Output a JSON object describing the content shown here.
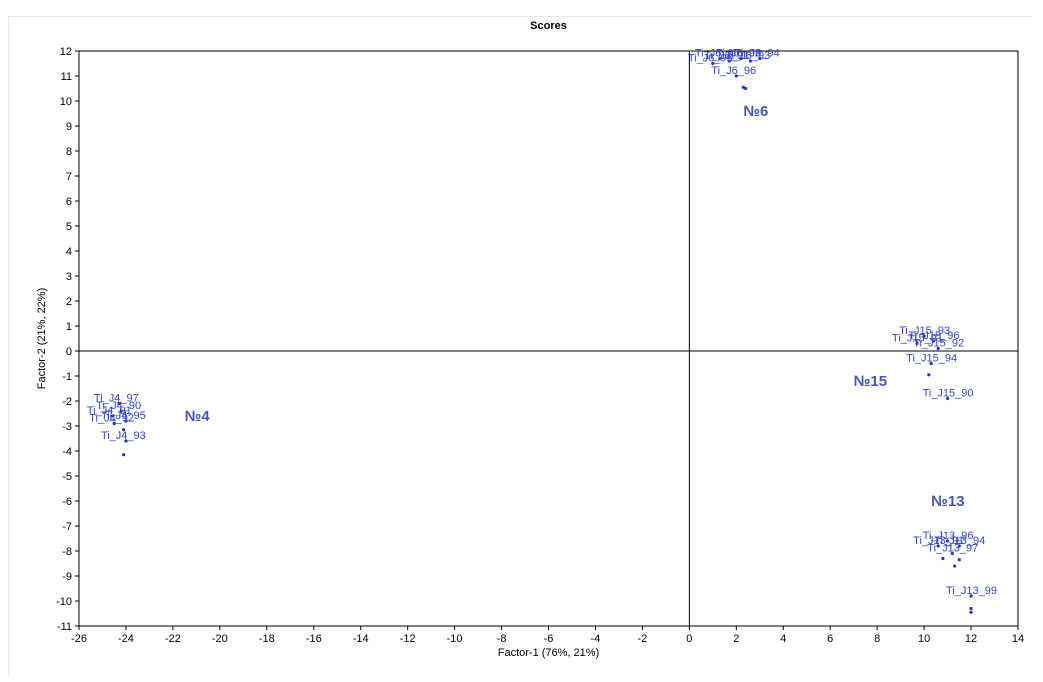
{
  "chart_data": {
    "type": "scatter",
    "title": "Scores",
    "xlabel": "Factor-1 (76%, 21%)",
    "ylabel": "Factor-2 (21%, 22%)",
    "xlim": [
      -26,
      14
    ],
    "ylim": [
      -11,
      12
    ],
    "x_ticks": [
      -26,
      -24,
      -22,
      -20,
      -18,
      -16,
      -14,
      -12,
      -10,
      -8,
      -6,
      -4,
      -2,
      0,
      2,
      4,
      6,
      8,
      10,
      12,
      14
    ],
    "y_ticks": [
      -11,
      -10,
      -9,
      -8,
      -7,
      -6,
      -5,
      -4,
      -3,
      -2,
      -1,
      0,
      1,
      2,
      3,
      4,
      5,
      6,
      7,
      8,
      9,
      10,
      11,
      12
    ],
    "grid": false,
    "zero_lines": true,
    "point_color": "#2233cc",
    "label_color": "#3344dd",
    "group_label_color": "#4455bb",
    "groups": [
      {
        "label": "№6",
        "label_pos": [
          2.3,
          9.4
        ]
      },
      {
        "label": "№15",
        "label_pos": [
          7.0,
          -1.4
        ]
      },
      {
        "label": "№4",
        "label_pos": [
          -21.5,
          -2.8
        ]
      },
      {
        "label": "№13",
        "label_pos": [
          10.3,
          -6.2
        ]
      }
    ],
    "points": [
      {
        "x": 2.4,
        "y": 10.5,
        "label": ""
      },
      {
        "x": 2.3,
        "y": 10.55,
        "label": ""
      },
      {
        "x": 2.0,
        "y": 11.0,
        "label": "Ti_J6_96"
      },
      {
        "x": 1.3,
        "y": 11.7,
        "label": "Ti_J6_90"
      },
      {
        "x": 1.7,
        "y": 11.6,
        "label": "Ti_J6_91"
      },
      {
        "x": 2.2,
        "y": 11.7,
        "label": "Ti_J6_92"
      },
      {
        "x": 2.6,
        "y": 11.6,
        "label": "Ti_J6_93"
      },
      {
        "x": 3.0,
        "y": 11.7,
        "label": "Ti_J6_94"
      },
      {
        "x": 1.0,
        "y": 11.5,
        "label": "Ti_J6_95"
      },
      {
        "x": 10.0,
        "y": 0.6,
        "label": "Ti_J15_93"
      },
      {
        "x": 10.4,
        "y": 0.4,
        "label": "Ti_J15_96"
      },
      {
        "x": 9.7,
        "y": 0.3,
        "label": "Ti_J15_91"
      },
      {
        "x": 10.6,
        "y": 0.1,
        "label": "Ti_J15_92"
      },
      {
        "x": 10.3,
        "y": -0.5,
        "label": "Ti_J15_94"
      },
      {
        "x": 10.2,
        "y": -0.95,
        "label": ""
      },
      {
        "x": 11.0,
        "y": -1.9,
        "label": "Ti_J15_90"
      },
      {
        "x": -24.3,
        "y": -2.1,
        "label": "Ti_J4_97"
      },
      {
        "x": -24.2,
        "y": -2.4,
        "label": "Ti_J4_90"
      },
      {
        "x": -24.6,
        "y": -2.6,
        "label": "Ti_J4_91"
      },
      {
        "x": -24.0,
        "y": -2.8,
        "label": "Ti_J4_95"
      },
      {
        "x": -24.5,
        "y": -2.9,
        "label": "Ti_J4_92"
      },
      {
        "x": -24.1,
        "y": -3.15,
        "label": ""
      },
      {
        "x": -24.0,
        "y": -3.6,
        "label": "Ti_J4_93"
      },
      {
        "x": -24.1,
        "y": -4.15,
        "label": ""
      },
      {
        "x": 11.0,
        "y": -7.6,
        "label": "Ti_J13_96"
      },
      {
        "x": 10.6,
        "y": -7.8,
        "label": "Ti_J13_91"
      },
      {
        "x": 11.5,
        "y": -7.8,
        "label": "Ti_J13_94"
      },
      {
        "x": 11.2,
        "y": -8.1,
        "label": "Ti_J13_97"
      },
      {
        "x": 10.8,
        "y": -8.3,
        "label": ""
      },
      {
        "x": 11.5,
        "y": -8.35,
        "label": ""
      },
      {
        "x": 11.3,
        "y": -8.6,
        "label": ""
      },
      {
        "x": 12.0,
        "y": -9.8,
        "label": "Ti_J13_99"
      },
      {
        "x": 12.0,
        "y": -10.3,
        "label": ""
      },
      {
        "x": 12.0,
        "y": -10.45,
        "label": ""
      }
    ]
  }
}
